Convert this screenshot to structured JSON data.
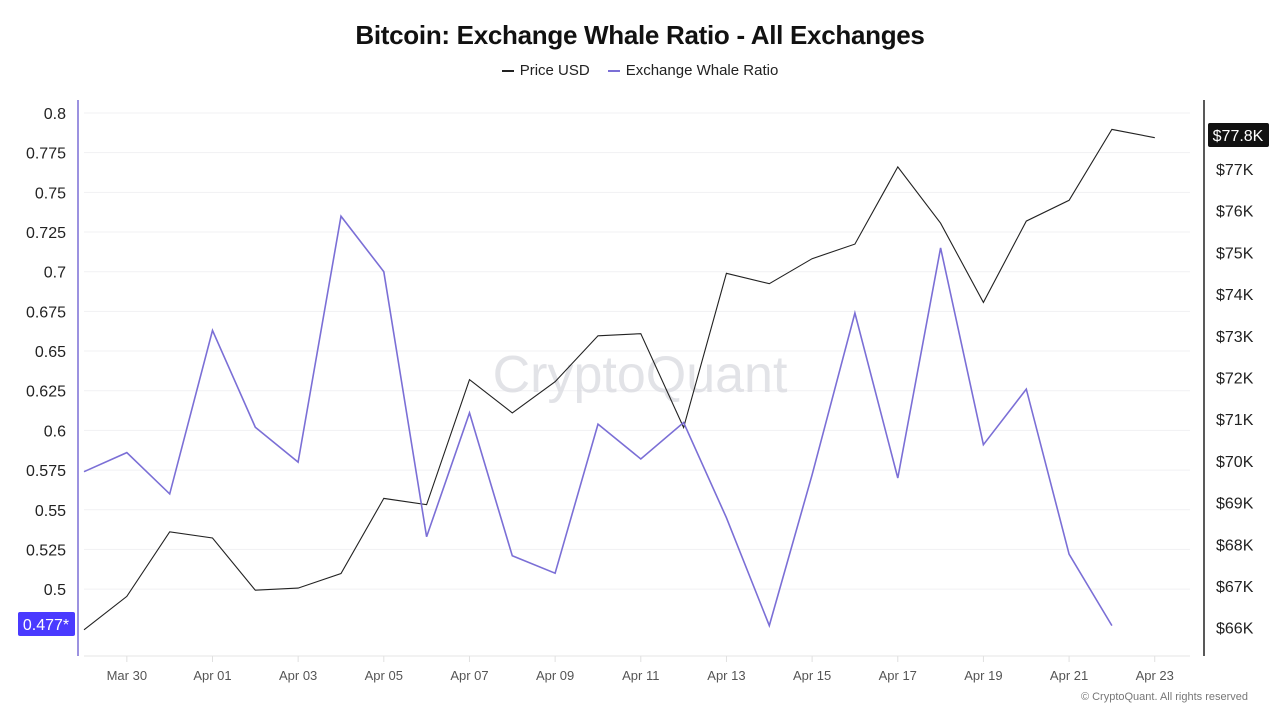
{
  "title": "Bitcoin: Exchange Whale Ratio - All Exchanges",
  "legend": [
    {
      "label": "Price USD",
      "color": "#222222"
    },
    {
      "label": "Exchange Whale Ratio",
      "color": "#7b6fd6"
    }
  ],
  "watermark": "CryptoQuant",
  "copyright": "© CryptoQuant. All rights reserved",
  "left_axis": {
    "ticks": [
      "0.8",
      "0.775",
      "0.75",
      "0.725",
      "0.7",
      "0.675",
      "0.65",
      "0.625",
      "0.6",
      "0.575",
      "0.55",
      "0.525",
      "0.5"
    ],
    "current_badge": "0.477*",
    "badge_color": "#4a3aff"
  },
  "right_axis": {
    "ticks": [
      "$77K",
      "$76K",
      "$75K",
      "$74K",
      "$73K",
      "$72K",
      "$71K",
      "$70K",
      "$69K",
      "$68K",
      "$67K",
      "$66K"
    ],
    "current_badge": "$77.8K",
    "badge_color": "#111111"
  },
  "x_axis": {
    "ticks": [
      "Mar 30",
      "Apr 01",
      "Apr 03",
      "Apr 05",
      "Apr 07",
      "Apr 09",
      "Apr 11",
      "Apr 13",
      "Apr 15",
      "Apr 17",
      "Apr 19",
      "Apr 21",
      "Apr 23"
    ]
  },
  "chart_data": {
    "type": "line",
    "title": "Bitcoin: Exchange Whale Ratio - All Exchanges",
    "xlabel": "",
    "ylabel_left": "Exchange Whale Ratio",
    "ylabel_right": "Price USD",
    "x": [
      "Mar 29",
      "Mar 30",
      "Mar 31",
      "Apr 01",
      "Apr 02",
      "Apr 03",
      "Apr 04",
      "Apr 05",
      "Apr 06",
      "Apr 07",
      "Apr 08",
      "Apr 09",
      "Apr 10",
      "Apr 11",
      "Apr 12",
      "Apr 13",
      "Apr 14",
      "Apr 15",
      "Apr 16",
      "Apr 17",
      "Apr 18",
      "Apr 19",
      "Apr 20",
      "Apr 21",
      "Apr 22",
      "Apr 23"
    ],
    "series": [
      {
        "name": "Exchange Whale Ratio",
        "axis": "left",
        "color": "#7b6fd6",
        "values": [
          0.574,
          0.586,
          0.56,
          0.663,
          0.602,
          0.58,
          0.735,
          0.7,
          0.533,
          0.611,
          0.521,
          0.51,
          0.604,
          0.582,
          0.605,
          0.545,
          0.477,
          0.572,
          0.674,
          0.57,
          0.715,
          0.591,
          0.626,
          0.522,
          0.477,
          null
        ]
      },
      {
        "name": "Price USD",
        "axis": "right",
        "color": "#222222",
        "values": [
          65950,
          66750,
          68300,
          68150,
          66900,
          66950,
          67300,
          69100,
          68950,
          71950,
          71150,
          71900,
          73000,
          73050,
          70800,
          74500,
          74250,
          74850,
          75200,
          77050,
          75700,
          73800,
          75750,
          76250,
          77950,
          77750
        ]
      }
    ],
    "ylim_left": [
      0.465,
      0.81
    ],
    "ylim_right": [
      65700,
      78300
    ],
    "grid": true,
    "legend_position": "top"
  }
}
